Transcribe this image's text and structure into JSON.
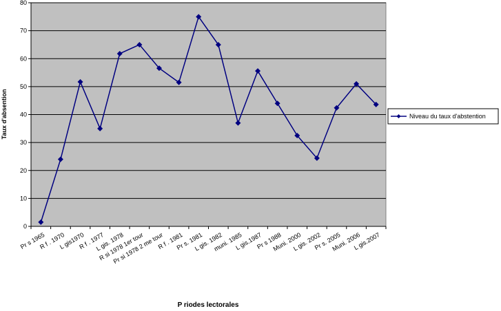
{
  "chart_data": {
    "type": "line",
    "y_label": "Taux d'absention",
    "x_label": "P riodes lectorales",
    "categories": [
      "Pr s 1965",
      "R f . 1970",
      "L gis1970",
      "R f . 1977",
      "L gis. 1978",
      "R si 1978 1er tour",
      "Pr si 1978 2 me tour",
      "R f . 1981",
      "Pr s. 1981",
      "L gis. 1982",
      "muni. 1985",
      "L gis.1987",
      "Pr s 1988",
      "Muni. 2000",
      "L gis. 2002",
      "Pr s. 2005",
      "Muni. 2006",
      "L gis.2007"
    ],
    "series": [
      {
        "name": "Niveau du taux d'abstention",
        "color": "#000080",
        "values": [
          1.5,
          24,
          51.7,
          35,
          61.8,
          65,
          56.6,
          51.5,
          75,
          65,
          37,
          55.6,
          44,
          32.5,
          24.4,
          42.4,
          51,
          43.6
        ]
      }
    ],
    "ylim": [
      0,
      80
    ],
    "yticks": [
      0,
      10,
      20,
      30,
      40,
      50,
      60,
      70,
      80
    ],
    "grid": true
  }
}
